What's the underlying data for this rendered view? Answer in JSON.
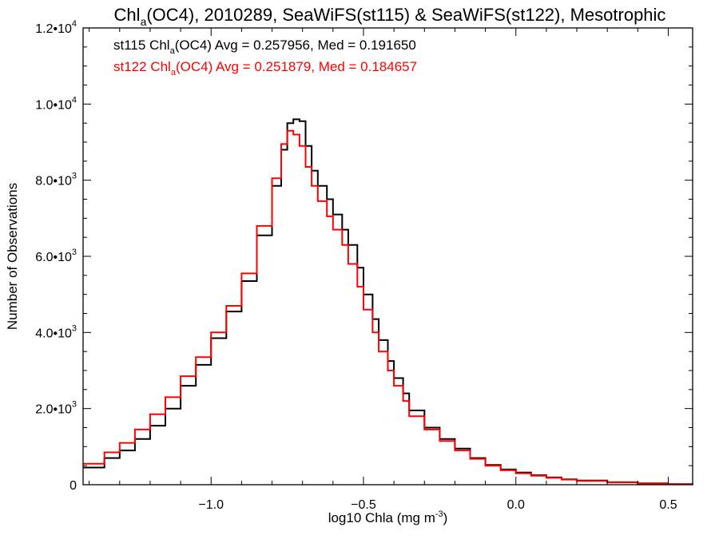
{
  "title": {
    "prefix": "Chl",
    "sub": "a",
    "suffix": "(OC4), 2010289, SeaWiFS(st115) & SeaWiFS(st122), Mesotrophic"
  },
  "chart_data": {
    "type": "step-line histogram",
    "xlabel": {
      "text": "log10 Chla (mg m",
      "sup": "-3",
      "tail": ")"
    },
    "ylabel": "Number of Observations",
    "xlim": [
      -1.42,
      0.58
    ],
    "ylim": [
      0,
      12000
    ],
    "x_ticks": [
      {
        "value": -1.0,
        "label": "−1.0"
      },
      {
        "value": -0.5,
        "label": "−0.5"
      },
      {
        "value": 0.0,
        "label": "0.0"
      },
      {
        "value": 0.5,
        "label": "0.5"
      }
    ],
    "y_ticks": [
      {
        "value": 0,
        "mant": "0",
        "exp": ""
      },
      {
        "value": 2000,
        "mant": "2.0•10",
        "exp": "3"
      },
      {
        "value": 4000,
        "mant": "4.0•10",
        "exp": "3"
      },
      {
        "value": 6000,
        "mant": "6.0•10",
        "exp": "3"
      },
      {
        "value": 8000,
        "mant": "8.0•10",
        "exp": "3"
      },
      {
        "value": 10000,
        "mant": "1.0•10",
        "exp": "4"
      },
      {
        "value": 12000,
        "mant": "1.2•10",
        "exp": "4"
      }
    ],
    "grid": false,
    "series": [
      {
        "color": "#000000",
        "label": {
          "pre": "st115 Chl",
          "sub": "a",
          "post": "(OC4) Avg = 0.257956, Med = 0.191650"
        },
        "x": [
          -1.42,
          -1.35,
          -1.3,
          -1.25,
          -1.2,
          -1.15,
          -1.1,
          -1.05,
          -1.0,
          -0.95,
          -0.9,
          -0.85,
          -0.8,
          -0.77,
          -0.75,
          -0.73,
          -0.71,
          -0.69,
          -0.67,
          -0.65,
          -0.62,
          -0.6,
          -0.57,
          -0.55,
          -0.52,
          -0.5,
          -0.47,
          -0.45,
          -0.42,
          -0.4,
          -0.37,
          -0.35,
          -0.3,
          -0.25,
          -0.2,
          -0.15,
          -0.1,
          -0.05,
          0.0,
          0.05,
          0.1,
          0.15,
          0.2,
          0.3,
          0.4,
          0.5,
          0.58
        ],
        "y": [
          450,
          700,
          900,
          1200,
          1550,
          2000,
          2600,
          3150,
          3850,
          4550,
          5350,
          6550,
          7850,
          8800,
          9500,
          9600,
          9550,
          8900,
          8250,
          7850,
          7500,
          7100,
          6700,
          6300,
          5700,
          5000,
          4350,
          3800,
          3250,
          2800,
          2400,
          1950,
          1500,
          1200,
          950,
          700,
          520,
          400,
          320,
          250,
          190,
          140,
          110,
          65,
          35,
          15,
          5
        ]
      },
      {
        "color": "#ff0000",
        "label": {
          "pre": "st122 Chl",
          "sub": "a",
          "post": "(OC4) Avg = 0.251879, Med = 0.184657"
        },
        "x": [
          -1.42,
          -1.35,
          -1.3,
          -1.25,
          -1.2,
          -1.15,
          -1.1,
          -1.05,
          -1.0,
          -0.95,
          -0.9,
          -0.85,
          -0.8,
          -0.77,
          -0.75,
          -0.73,
          -0.71,
          -0.69,
          -0.67,
          -0.65,
          -0.62,
          -0.6,
          -0.57,
          -0.55,
          -0.52,
          -0.5,
          -0.47,
          -0.45,
          -0.42,
          -0.4,
          -0.37,
          -0.35,
          -0.3,
          -0.25,
          -0.2,
          -0.15,
          -0.1,
          -0.05,
          0.0,
          0.05,
          0.1,
          0.15,
          0.2,
          0.3,
          0.4,
          0.5,
          0.58
        ],
        "y": [
          550,
          850,
          1100,
          1450,
          1850,
          2300,
          2850,
          3350,
          4000,
          4700,
          5550,
          6800,
          8050,
          8950,
          9300,
          9200,
          8900,
          8350,
          7850,
          7450,
          7050,
          6700,
          6300,
          5800,
          5200,
          4600,
          4000,
          3500,
          3000,
          2600,
          2200,
          1800,
          1450,
          1150,
          900,
          680,
          500,
          380,
          300,
          235,
          180,
          135,
          100,
          60,
          30,
          12,
          4
        ]
      }
    ]
  }
}
